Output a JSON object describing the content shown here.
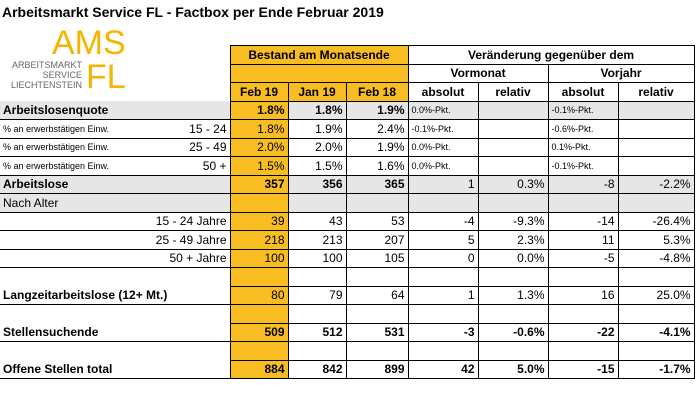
{
  "title": "Arbeitsmarkt Service FL - Factbox per Ende Februar 2019",
  "logo": {
    "top": "AMS",
    "bottom": "FL",
    "lines": [
      "ARBEITSMARKT",
      "SERVICE",
      "LIECHTENSTEIN"
    ]
  },
  "table": {
    "header": {
      "stock": "Bestand am Monatsende",
      "change": "Veränderung gegenüber dem",
      "prev_month": "Vormonat",
      "prev_year": "Vorjahr",
      "columns": [
        "Feb 19",
        "Jan 19",
        "Feb 18",
        "absolut",
        "relativ",
        "absolut",
        "relativ"
      ]
    },
    "rows": [
      {
        "label": "Arbeitslosenquote",
        "cells": [
          "1.8%",
          "1.8%",
          "1.9%",
          "0.0%-Pkt.",
          null,
          "-0.1%-Pkt.",
          null
        ]
      },
      {
        "label": "% an erwerbstätigen Einw.",
        "sub": "15 - 24",
        "cells": [
          "1.8%",
          "1.9%",
          "2.4%",
          "-0.1%-Pkt.",
          null,
          "-0.6%-Pkt.",
          null
        ]
      },
      {
        "label": "% an erwerbstätigen Einw.",
        "sub": "25 - 49",
        "cells": [
          "2.0%",
          "2.0%",
          "1.9%",
          "0.0%-Pkt.",
          null,
          "0.1%-Pkt.",
          null
        ]
      },
      {
        "label": "% an erwerbstätigen Einw.",
        "sub": "50 +",
        "cells": [
          "1.5%",
          "1.5%",
          "1.6%",
          "0.0%-Pkt.",
          null,
          "-0.1%-Pkt.",
          null
        ]
      },
      {
        "label": "Arbeitslose",
        "cells": [
          "357",
          "356",
          "365",
          "1",
          "0.3%",
          "-8",
          "-2.2%"
        ]
      },
      {
        "label": "Nach Alter"
      },
      {
        "label": "15 - 24 Jahre",
        "cells": [
          "39",
          "43",
          "53",
          "-4",
          "-9.3%",
          "-14",
          "-26.4%"
        ]
      },
      {
        "label": "25 - 49 Jahre",
        "cells": [
          "218",
          "213",
          "207",
          "5",
          "2.3%",
          "11",
          "5.3%"
        ]
      },
      {
        "label": "50 + Jahre",
        "cells": [
          "100",
          "100",
          "105",
          "0",
          "0.0%",
          "-5",
          "-4.8%"
        ]
      },
      {
        "label": "Langzeitarbeitslose (12+ Mt.)",
        "cells": [
          "80",
          "79",
          "64",
          "1",
          "1.3%",
          "16",
          "25.0%"
        ]
      },
      {
        "label": "Stellensuchende",
        "cells": [
          "509",
          "512",
          "531",
          "-3",
          "-0.6%",
          "-22",
          "-4.1%"
        ]
      },
      {
        "label": "Offene Stellen total",
        "cells": [
          "884",
          "842",
          "899",
          "42",
          "5.0%",
          "-15",
          "-1.7%"
        ]
      }
    ]
  }
}
